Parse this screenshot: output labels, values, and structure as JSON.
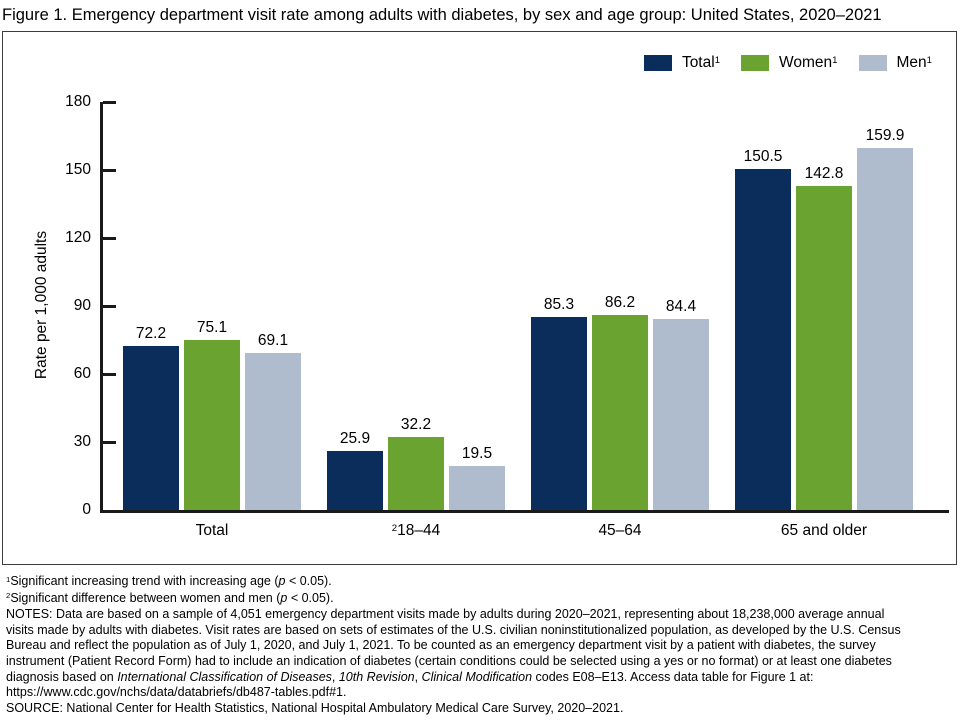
{
  "title": "Figure 1. Emergency department visit rate among adults with diabetes, by sex and age group: United States, 2020–2021",
  "colors": {
    "total_series": "#0b2d5b",
    "women_series": "#6aa32f",
    "men_series": "#aebccd",
    "axis": "#1a1a1a",
    "text": "#000000"
  },
  "chart_data": {
    "type": "bar",
    "title": "Emergency department visit rate among adults with diabetes, by sex and age group: United States, 2020–2021",
    "categories": [
      "Total",
      "18–44",
      "45–64",
      "65 and older"
    ],
    "category_sup_prefixes": [
      "",
      "2",
      "",
      ""
    ],
    "series": [
      {
        "name": "Total",
        "sup": "1",
        "color": "#0b2d5b",
        "values": [
          72.2,
          25.9,
          85.3,
          150.5
        ]
      },
      {
        "name": "Women",
        "sup": "1",
        "color": "#6aa32f",
        "values": [
          75.1,
          32.2,
          86.2,
          142.8
        ]
      },
      {
        "name": "Men",
        "sup": "1",
        "color": "#aebccd",
        "values": [
          69.1,
          19.5,
          84.4,
          159.9
        ]
      }
    ],
    "xlabel": "",
    "ylabel": "Rate per 1,000 adults",
    "ylim": [
      0,
      180
    ],
    "yticks": [
      0,
      30,
      60,
      90,
      120,
      150,
      180
    ],
    "grid": false,
    "legend_position": "top-right",
    "value_labels": true
  },
  "footnotes": {
    "lines": [
      {
        "segments": [
          {
            "text": "1",
            "sup": true
          },
          {
            "text": "Significant increasing trend with increasing age ("
          },
          {
            "text": "p",
            "italic": true
          },
          {
            "text": " < 0.05)."
          }
        ]
      },
      {
        "segments": [
          {
            "text": "2",
            "sup": true
          },
          {
            "text": "Significant difference between women and men ("
          },
          {
            "text": "p",
            "italic": true
          },
          {
            "text": " < 0.05)."
          }
        ]
      },
      {
        "segments": [
          {
            "text": "NOTES: Data are based on a sample of 4,051 emergency department visits made by adults during 2020–2021, representing about 18,238,000 average annual"
          }
        ]
      },
      {
        "segments": [
          {
            "text": "visits made by adults with diabetes. Visit rates are based on sets of estimates of the U.S. civilian noninstitutionalized population, as developed by the U.S. Census"
          }
        ]
      },
      {
        "segments": [
          {
            "text": "Bureau and reflect the population as of July 1, 2020, and July 1, 2021. To be counted as an emergency department visit by a patient with diabetes, the survey"
          }
        ]
      },
      {
        "segments": [
          {
            "text": "instrument (Patient Record Form) had to include an indication of diabetes (certain conditions could be selected using a yes or no format) or at least one diabetes"
          }
        ]
      },
      {
        "segments": [
          {
            "text": "diagnosis based on "
          },
          {
            "text": "International Classification of Diseases",
            "italic": true
          },
          {
            "text": ", "
          },
          {
            "text": "10th Revision",
            "italic": true
          },
          {
            "text": ", "
          },
          {
            "text": "Clinical Modification",
            "italic": true
          },
          {
            "text": " codes E08–E13. Access data table for Figure 1 at:"
          }
        ]
      },
      {
        "segments": [
          {
            "text": "https://www.cdc.gov/nchs/data/databriefs/db487-tables.pdf#1."
          }
        ]
      },
      {
        "segments": [
          {
            "text": "SOURCE: National Center for Health Statistics, National Hospital Ambulatory Medical Care Survey, 2020–2021."
          }
        ]
      }
    ]
  }
}
